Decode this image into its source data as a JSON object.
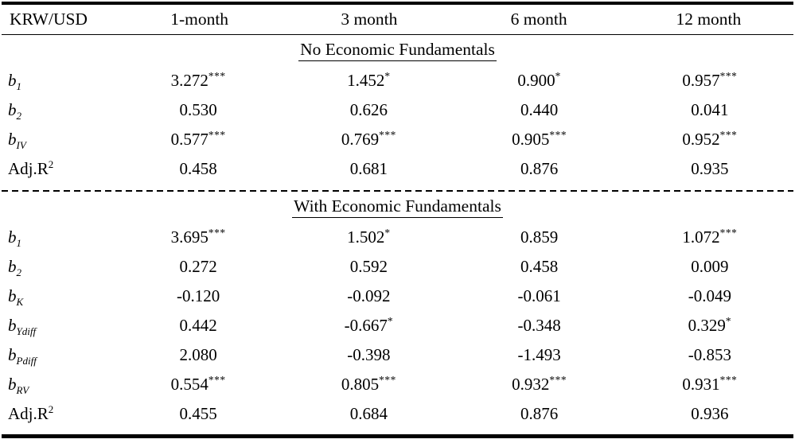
{
  "page": {
    "background": "#ffffff",
    "text_color": "#000000"
  },
  "table": {
    "corner_label": "KRW/USD",
    "columns": [
      "1-month",
      "3 month",
      "6 month",
      "12 month"
    ],
    "sections": [
      {
        "title": "No Economic Fundamentals",
        "rows": [
          {
            "label": {
              "base": "b",
              "sub": "1",
              "kind": "var"
            },
            "cells": [
              {
                "v": "3.272",
                "stars": "***"
              },
              {
                "v": "1.452",
                "stars": "*"
              },
              {
                "v": "0.900",
                "stars": "*"
              },
              {
                "v": "0.957",
                "stars": "***"
              }
            ]
          },
          {
            "label": {
              "base": "b",
              "sub": "2",
              "kind": "var"
            },
            "cells": [
              {
                "v": "0.530",
                "stars": ""
              },
              {
                "v": "0.626",
                "stars": ""
              },
              {
                "v": "0.440",
                "stars": ""
              },
              {
                "v": "0.041",
                "stars": ""
              }
            ]
          },
          {
            "label": {
              "base": "b",
              "sub": "IV",
              "kind": "var"
            },
            "cells": [
              {
                "v": "0.577",
                "stars": "***"
              },
              {
                "v": "0.769",
                "stars": "***"
              },
              {
                "v": "0.905",
                "stars": "***"
              },
              {
                "v": "0.952",
                "stars": "***"
              }
            ]
          },
          {
            "label": {
              "base": "Adj.R",
              "sup": "2",
              "kind": "text"
            },
            "cells": [
              {
                "v": "0.458",
                "stars": ""
              },
              {
                "v": "0.681",
                "stars": ""
              },
              {
                "v": "0.876",
                "stars": ""
              },
              {
                "v": "0.935",
                "stars": ""
              }
            ]
          }
        ]
      },
      {
        "title": "With Economic Fundamentals",
        "rows": [
          {
            "label": {
              "base": "b",
              "sub": "1",
              "kind": "var"
            },
            "cells": [
              {
                "v": "3.695",
                "stars": "***"
              },
              {
                "v": "1.502",
                "stars": "*"
              },
              {
                "v": "0.859",
                "stars": ""
              },
              {
                "v": "1.072",
                "stars": "***"
              }
            ]
          },
          {
            "label": {
              "base": "b",
              "sub": "2",
              "kind": "var"
            },
            "cells": [
              {
                "v": "0.272",
                "stars": ""
              },
              {
                "v": "0.592",
                "stars": ""
              },
              {
                "v": "0.458",
                "stars": ""
              },
              {
                "v": "0.009",
                "stars": ""
              }
            ]
          },
          {
            "label": {
              "base": "b",
              "sub": "K",
              "kind": "var"
            },
            "cells": [
              {
                "v": "-0.120",
                "stars": ""
              },
              {
                "v": "-0.092",
                "stars": ""
              },
              {
                "v": "-0.061",
                "stars": ""
              },
              {
                "v": "-0.049",
                "stars": ""
              }
            ]
          },
          {
            "label": {
              "base": "b",
              "sub": "Ydiff",
              "kind": "var"
            },
            "cells": [
              {
                "v": "0.442",
                "stars": ""
              },
              {
                "v": "-0.667",
                "stars": "*"
              },
              {
                "v": "-0.348",
                "stars": ""
              },
              {
                "v": "0.329",
                "stars": "*"
              }
            ]
          },
          {
            "label": {
              "base": "b",
              "sub": "Pdiff",
              "kind": "var"
            },
            "cells": [
              {
                "v": "2.080",
                "stars": ""
              },
              {
                "v": "-0.398",
                "stars": ""
              },
              {
                "v": "-1.493",
                "stars": ""
              },
              {
                "v": "-0.853",
                "stars": ""
              }
            ]
          },
          {
            "label": {
              "base": "b",
              "sub": "RV",
              "kind": "var"
            },
            "cells": [
              {
                "v": "0.554",
                "stars": "***"
              },
              {
                "v": "0.805",
                "stars": "***"
              },
              {
                "v": "0.932",
                "stars": "***"
              },
              {
                "v": "0.931",
                "stars": "***"
              }
            ]
          },
          {
            "label": {
              "base": "Adj.R",
              "sup": "2",
              "kind": "text"
            },
            "cells": [
              {
                "v": "0.455",
                "stars": ""
              },
              {
                "v": "0.684",
                "stars": ""
              },
              {
                "v": "0.876",
                "stars": ""
              },
              {
                "v": "0.936",
                "stars": ""
              }
            ]
          }
        ]
      }
    ]
  }
}
